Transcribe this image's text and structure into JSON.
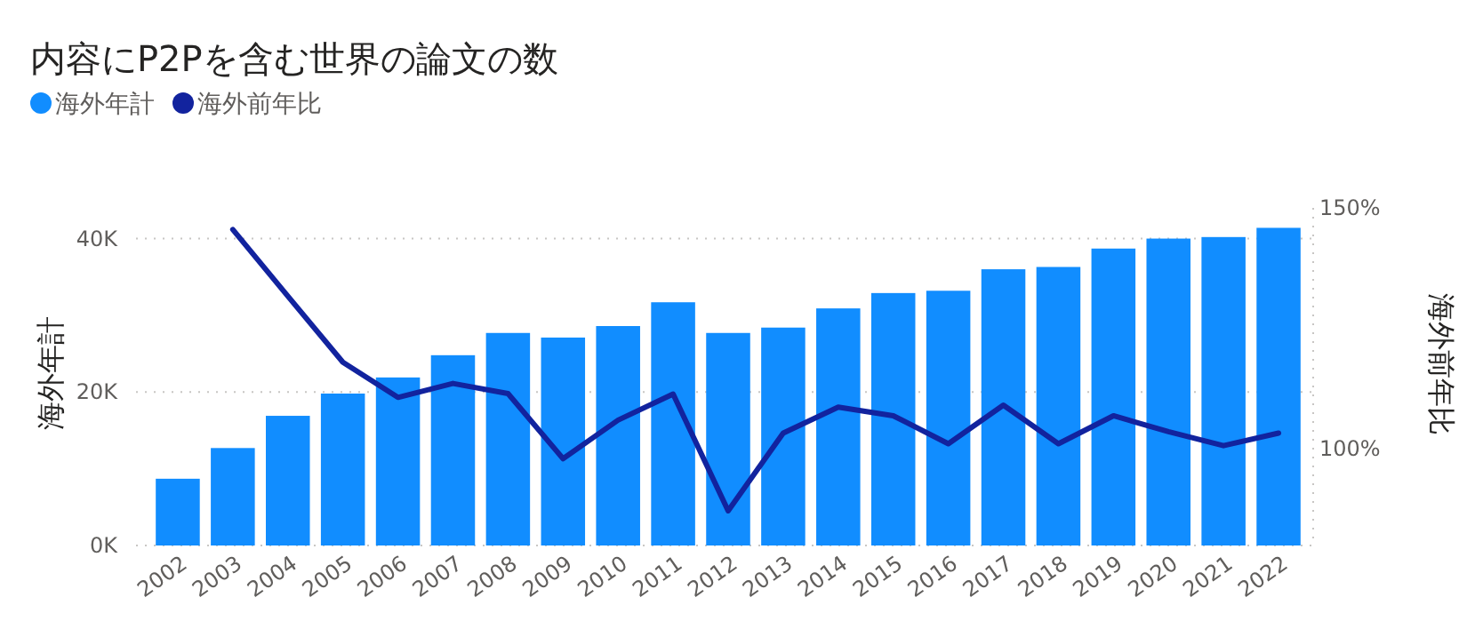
{
  "chart_data": {
    "type": "bar",
    "title": "内容にP2Pを含む世界の論文の数",
    "categories": [
      "2002",
      "2003",
      "2004",
      "2005",
      "2006",
      "2007",
      "2008",
      "2009",
      "2010",
      "2011",
      "2012",
      "2013",
      "2014",
      "2015",
      "2016",
      "2017",
      "2018",
      "2019",
      "2020",
      "2021",
      "2022"
    ],
    "series": [
      {
        "name": "海外年計",
        "color": "#118dff",
        "values": [
          8700,
          12700,
          16900,
          19800,
          21900,
          24800,
          27700,
          27100,
          28600,
          31700,
          27700,
          28400,
          30900,
          32900,
          33200,
          36000,
          36300,
          38700,
          40000,
          40200,
          41400
        ]
      },
      {
        "name": "海外前年比",
        "type": "line",
        "axis": "y2",
        "color": "#12239e",
        "values": [
          null,
          145.5,
          131.7,
          118.0,
          110.7,
          113.6,
          111.5,
          98.0,
          106.0,
          111.4,
          87.2,
          103.3,
          108.7,
          106.9,
          101.1,
          109.1,
          101.1,
          106.9,
          103.6,
          100.7,
          103.3
        ]
      }
    ],
    "ylabel": "海外年計",
    "y2label": "海外前年比",
    "ylim": [
      0,
      44000
    ],
    "yticks": [
      {
        "value": 0,
        "label": "0K"
      },
      {
        "value": 20000,
        "label": "20K"
      },
      {
        "value": 40000,
        "label": "40K"
      }
    ],
    "y2lim": [
      80,
      150
    ],
    "y2ticks": [
      {
        "value": 100,
        "label": "100%"
      },
      {
        "value": 150,
        "label": "150%"
      }
    ],
    "grid": "y",
    "legend": "top left",
    "marker": "none",
    "line_style": "solid"
  }
}
